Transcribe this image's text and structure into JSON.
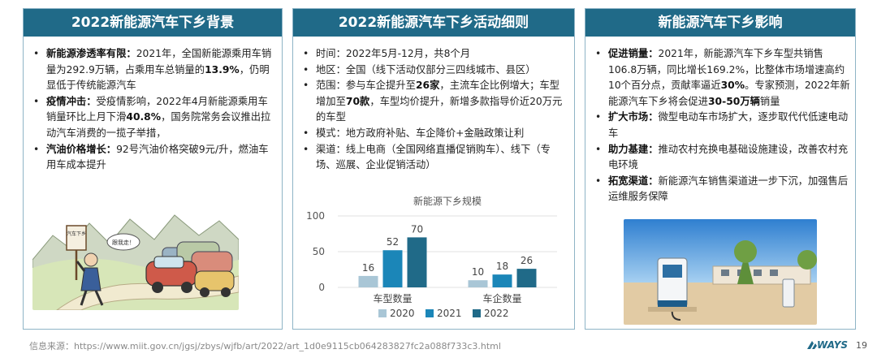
{
  "panel1": {
    "title": "2022新能源汽车下乡背景",
    "items": [
      {
        "label": "新能源渗透率有限：",
        "t1": "2021年，全国新能源乘用车销量为292.9万辆，占乘用车总销量的",
        "b1": "13.9%",
        "t2": "，仍明显低于传统能源汽车"
      },
      {
        "label": "疫情冲击：",
        "t1": "受疫情影响，2022年4月新能源乘用车销量环比上月下滑",
        "b1": "40.8%",
        "t2": "，国务院常务会议推出拉动汽车消费的一揽子举措，"
      },
      {
        "label": "汽油价格增长：",
        "t1": "92号汽油价格突破9元/升，燃油车用车成本提升"
      }
    ]
  },
  "panel2": {
    "title": "2022新能源汽车下乡活动细则",
    "items": [
      {
        "t1": "时间：2022年5月-12月，共8个月"
      },
      {
        "t1": "地区：全国（线下活动仅部分三四线城市、县区）"
      },
      {
        "t1": "范围：参与车企提升至",
        "b1": "26家",
        "t2": "，主流车企比例增大；车型增加至",
        "b2": "70款",
        "t3": "，车型均价提升，新增多款指导价近20万元的车型"
      },
      {
        "t1": "模式：地方政府补贴、车企降价+金融政策让利"
      },
      {
        "t1": "渠道：线上电商（全国网络直播促销购车）、线下（专场、巡展、企业促销活动）"
      }
    ]
  },
  "panel3": {
    "title": "新能源汽车下乡影响",
    "items": [
      {
        "label": "促进销量：",
        "t1": "2021年，新能源汽车下乡车型共销售106.8万辆，同比增长169.2%，比整体市场增速高约10个百分点，贡献率逼近",
        "b1": "30%",
        "t2": "。专家预测，2022年新能源汽车下乡将会促进",
        "b2": "30-50万辆",
        "t3": "销量"
      },
      {
        "label": "扩大市场：",
        "t1": "微型电动车市场扩大，逐步取代代低速电动车"
      },
      {
        "label": "助力基建：",
        "t1": "推动农村充换电基础设施建设，改善农村充电环境"
      },
      {
        "label": "拓宽渠道：",
        "t1": "新能源汽车销售渠道进一步下沉，加强售后运维服务保障"
      }
    ]
  },
  "illustration": {
    "sign_text": "汽车下乡",
    "bubble_text": "跟我走！"
  },
  "chart_data": {
    "type": "bar",
    "title": "新能源下乡规模",
    "categories": [
      "车型数量",
      "车企数量"
    ],
    "series": [
      {
        "name": "2020",
        "values": [
          16,
          10
        ],
        "color": "#a9c6d6"
      },
      {
        "name": "2021",
        "values": [
          52,
          18
        ],
        "color": "#1b86b8"
      },
      {
        "name": "2022",
        "values": [
          70,
          26
        ],
        "color": "#206a88"
      }
    ],
    "yticks": [
      0,
      50,
      100
    ],
    "ylim": [
      0,
      100
    ],
    "xlabel": "",
    "ylabel": ""
  },
  "footer": {
    "source": "信息来源：https://www.miit.gov.cn/jgsj/zbys/wjfb/art/2022/art_1d0e9115cb064283827fc2a088f733c3.html"
  },
  "logo": "WAYS",
  "page_number": "19"
}
